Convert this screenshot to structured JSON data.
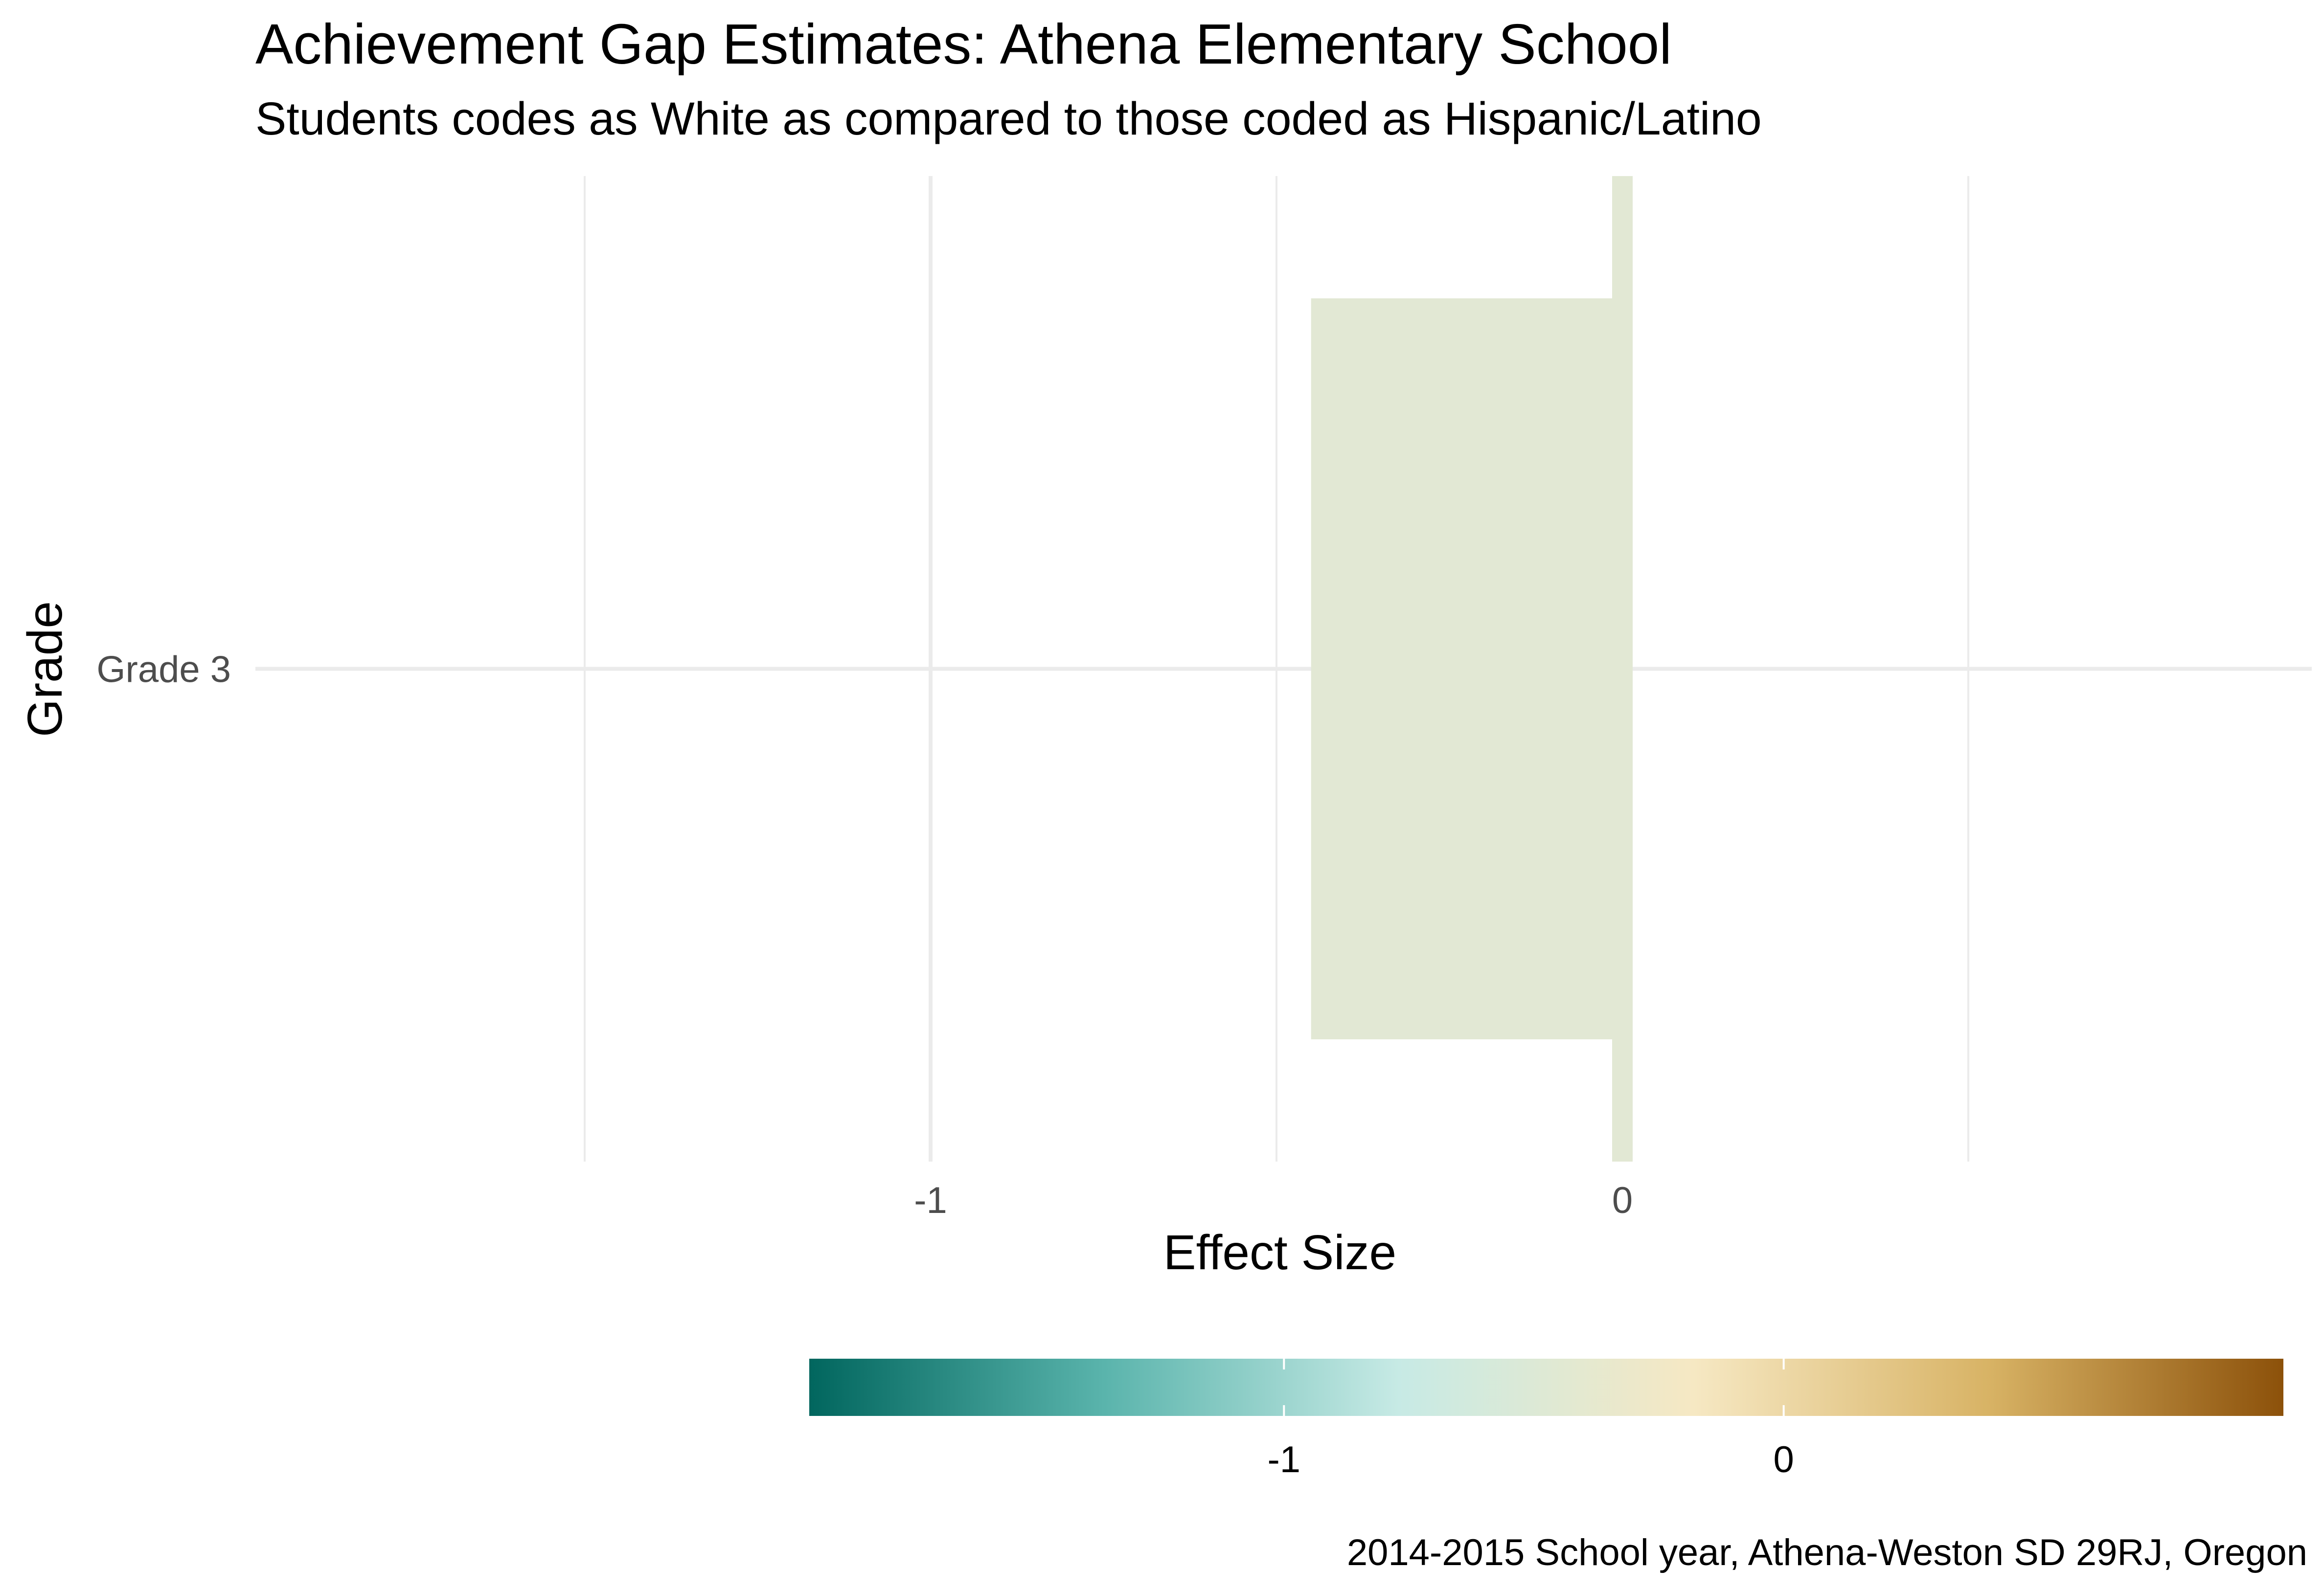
{
  "chart_data": {
    "type": "bar",
    "orientation": "horizontal",
    "title": "Achievement Gap Estimates: Athena Elementary School",
    "subtitle": "Students codes as White as compared to those coded as Hispanic/Latino",
    "xlabel": "Effect Size",
    "ylabel": "Grade",
    "caption": "2014-2015 School year, Athena-Weston SD 29RJ, Oregon",
    "categories": [
      "Grade 3"
    ],
    "values": [
      -0.45
    ],
    "error_bar": {
      "low": -0.45,
      "high": 0.0
    },
    "xlim": [
      -1.98,
      1.0
    ],
    "x_ticks": [
      -1,
      0
    ],
    "x_tick_labels": [
      "-1",
      "0"
    ],
    "grid": true,
    "bar_color": "#e2e8d4",
    "legend": {
      "position": "bottom",
      "type": "colorbar",
      "range": [
        -1.95,
        1.0
      ],
      "ticks": [
        -1,
        0
      ],
      "tick_labels": [
        "-1",
        "0"
      ],
      "colors": [
        "#01665e",
        "#5ab4ac",
        "#c7eae5",
        "#f6e8c3",
        "#d8b365",
        "#8c510a"
      ]
    }
  }
}
